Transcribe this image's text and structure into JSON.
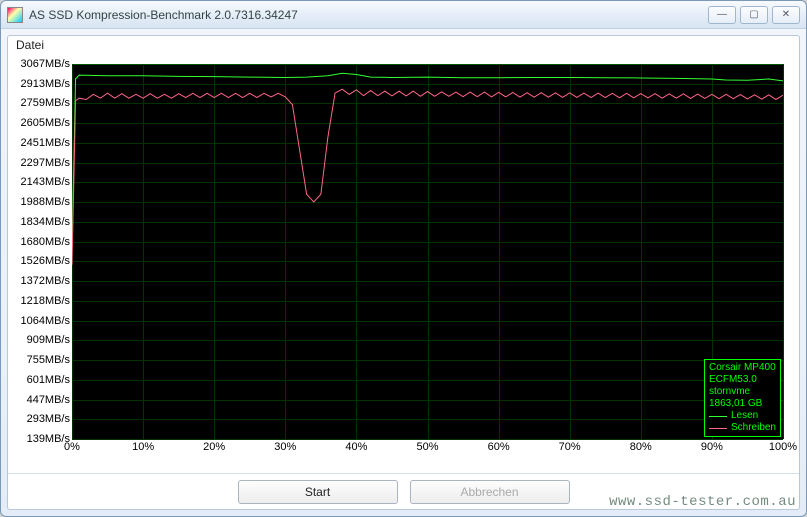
{
  "window": {
    "title": "AS SSD Kompression-Benchmark 2.0.7316.34247",
    "minimize_icon": "—",
    "maximize_icon": "▢",
    "close_icon": "✕"
  },
  "menu": {
    "file": "Datei"
  },
  "chart": {
    "type": "line",
    "background_color": "#000000",
    "grid_color": "#003300",
    "axis_label_color": "#000000",
    "axis_fontsize": 11,
    "y_axis_unit": "MB/s",
    "y_min": 139,
    "y_max": 3067,
    "y_ticks": [
      3067,
      2913,
      2759,
      2605,
      2451,
      2297,
      2143,
      1988,
      1834,
      1680,
      1526,
      1372,
      1218,
      1064,
      909,
      755,
      601,
      447,
      293,
      139
    ],
    "x_min": 0,
    "x_max": 100,
    "x_unit": "%",
    "x_ticks": [
      0,
      10,
      20,
      30,
      40,
      50,
      60,
      70,
      80,
      90,
      100
    ],
    "series": [
      {
        "name": "Lesen",
        "color": "#33ff33",
        "line_width": 1,
        "points": [
          [
            0,
            1600
          ],
          [
            0.5,
            2950
          ],
          [
            1,
            2980
          ],
          [
            5,
            2975
          ],
          [
            10,
            2975
          ],
          [
            15,
            2970
          ],
          [
            20,
            2968
          ],
          [
            25,
            2965
          ],
          [
            30,
            2962
          ],
          [
            33,
            2965
          ],
          [
            36,
            2975
          ],
          [
            38,
            2995
          ],
          [
            40,
            2985
          ],
          [
            42,
            2965
          ],
          [
            45,
            2962
          ],
          [
            50,
            2965
          ],
          [
            55,
            2960
          ],
          [
            60,
            2960
          ],
          [
            65,
            2962
          ],
          [
            70,
            2962
          ],
          [
            75,
            2960
          ],
          [
            80,
            2958
          ],
          [
            85,
            2955
          ],
          [
            90,
            2950
          ],
          [
            92,
            2942
          ],
          [
            95,
            2940
          ],
          [
            98,
            2950
          ],
          [
            100,
            2935
          ]
        ]
      },
      {
        "name": "Schreiben",
        "color": "#ff6688",
        "line_width": 1,
        "points": [
          [
            0,
            1500
          ],
          [
            0.5,
            2780
          ],
          [
            1,
            2800
          ],
          [
            2,
            2790
          ],
          [
            3,
            2830
          ],
          [
            4,
            2800
          ],
          [
            5,
            2840
          ],
          [
            6,
            2800
          ],
          [
            7,
            2835
          ],
          [
            8,
            2800
          ],
          [
            9,
            2830
          ],
          [
            10,
            2800
          ],
          [
            11,
            2835
          ],
          [
            12,
            2800
          ],
          [
            13,
            2830
          ],
          [
            14,
            2800
          ],
          [
            15,
            2835
          ],
          [
            16,
            2805
          ],
          [
            17,
            2838
          ],
          [
            18,
            2805
          ],
          [
            19,
            2838
          ],
          [
            20,
            2805
          ],
          [
            21,
            2838
          ],
          [
            22,
            2805
          ],
          [
            23,
            2838
          ],
          [
            24,
            2805
          ],
          [
            25,
            2838
          ],
          [
            26,
            2805
          ],
          [
            27,
            2838
          ],
          [
            28,
            2810
          ],
          [
            29,
            2838
          ],
          [
            30,
            2810
          ],
          [
            31,
            2750
          ],
          [
            32,
            2400
          ],
          [
            33,
            2050
          ],
          [
            34,
            1990
          ],
          [
            35,
            2050
          ],
          [
            36,
            2500
          ],
          [
            37,
            2840
          ],
          [
            38,
            2870
          ],
          [
            39,
            2830
          ],
          [
            40,
            2865
          ],
          [
            41,
            2820
          ],
          [
            42,
            2860
          ],
          [
            43,
            2820
          ],
          [
            44,
            2855
          ],
          [
            45,
            2818
          ],
          [
            46,
            2855
          ],
          [
            47,
            2818
          ],
          [
            48,
            2855
          ],
          [
            49,
            2815
          ],
          [
            50,
            2852
          ],
          [
            51,
            2815
          ],
          [
            52,
            2850
          ],
          [
            53,
            2815
          ],
          [
            54,
            2848
          ],
          [
            55,
            2812
          ],
          [
            56,
            2848
          ],
          [
            57,
            2812
          ],
          [
            58,
            2848
          ],
          [
            59,
            2810
          ],
          [
            60,
            2846
          ],
          [
            61,
            2810
          ],
          [
            62,
            2845
          ],
          [
            63,
            2808
          ],
          [
            64,
            2843
          ],
          [
            65,
            2808
          ],
          [
            66,
            2843
          ],
          [
            67,
            2808
          ],
          [
            68,
            2842
          ],
          [
            69,
            2806
          ],
          [
            70,
            2842
          ],
          [
            71,
            2806
          ],
          [
            72,
            2840
          ],
          [
            73,
            2805
          ],
          [
            74,
            2840
          ],
          [
            75,
            2805
          ],
          [
            76,
            2838
          ],
          [
            77,
            2803
          ],
          [
            78,
            2838
          ],
          [
            79,
            2803
          ],
          [
            80,
            2836
          ],
          [
            81,
            2802
          ],
          [
            82,
            2836
          ],
          [
            83,
            2800
          ],
          [
            84,
            2834
          ],
          [
            85,
            2800
          ],
          [
            86,
            2834
          ],
          [
            87,
            2798
          ],
          [
            88,
            2832
          ],
          [
            89,
            2798
          ],
          [
            90,
            2830
          ],
          [
            91,
            2796
          ],
          [
            92,
            2830
          ],
          [
            93,
            2796
          ],
          [
            94,
            2828
          ],
          [
            95,
            2794
          ],
          [
            96,
            2826
          ],
          [
            97,
            2792
          ],
          [
            98,
            2826
          ],
          [
            99,
            2790
          ],
          [
            100,
            2824
          ]
        ]
      }
    ]
  },
  "legend": {
    "border_color": "#00ff00",
    "text_color": "#00ff00",
    "lines": [
      "Corsair MP400",
      "ECFM53.0",
      "stornvme",
      "1863,01 GB"
    ],
    "entries": [
      {
        "label": "Lesen",
        "color": "#33ff33"
      },
      {
        "label": "Schreiben",
        "color": "#ff6688"
      }
    ]
  },
  "buttons": {
    "start": "Start",
    "cancel": "Abbrechen"
  },
  "watermark": "www.ssd-tester.com.au"
}
